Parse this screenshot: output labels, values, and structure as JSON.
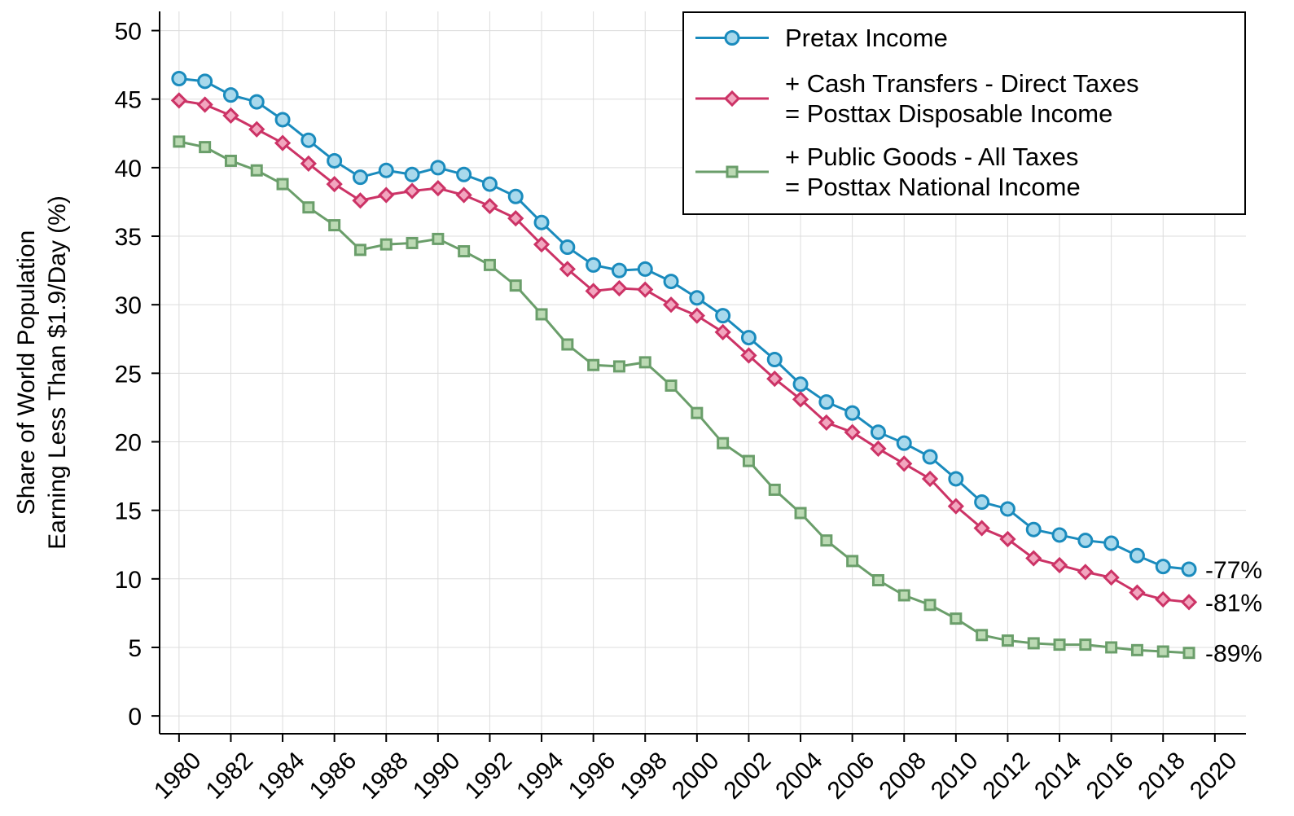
{
  "chart_data": {
    "type": "line",
    "y_label": [
      "Share of World Population",
      "Earning Less Than $1.9/Day (%)"
    ],
    "x": [
      1980,
      1981,
      1982,
      1983,
      1984,
      1985,
      1986,
      1987,
      1988,
      1989,
      1990,
      1991,
      1992,
      1993,
      1994,
      1995,
      1996,
      1997,
      1998,
      1999,
      2000,
      2001,
      2002,
      2003,
      2004,
      2005,
      2006,
      2007,
      2008,
      2009,
      2010,
      2011,
      2012,
      2013,
      2014,
      2015,
      2016,
      2017,
      2018,
      2019
    ],
    "series": [
      {
        "name": "Pretax Income",
        "color": "#1a8bbd",
        "marker_fill": "#a9d9ec",
        "marker": "circle",
        "values": [
          46.5,
          46.3,
          45.3,
          44.8,
          43.5,
          42.0,
          40.5,
          39.3,
          39.8,
          39.5,
          40.0,
          39.5,
          38.8,
          37.9,
          36.0,
          34.2,
          32.9,
          32.5,
          32.6,
          31.7,
          30.5,
          29.2,
          27.6,
          26.0,
          24.2,
          22.9,
          22.1,
          20.7,
          19.9,
          18.9,
          17.3,
          15.6,
          15.1,
          13.6,
          13.2,
          12.8,
          12.6,
          11.7,
          10.9,
          10.7
        ]
      },
      {
        "name": "+ Cash Transfers - Direct Taxes\n= Posttax Disposable Income",
        "color": "#cc3366",
        "marker_fill": "#f2a6bf",
        "marker": "diamond",
        "values": [
          44.9,
          44.6,
          43.8,
          42.8,
          41.8,
          40.3,
          38.8,
          37.6,
          38.0,
          38.3,
          38.5,
          38.0,
          37.2,
          36.3,
          34.4,
          32.6,
          31.0,
          31.2,
          31.1,
          30.0,
          29.2,
          28.0,
          26.3,
          24.6,
          23.1,
          21.4,
          20.7,
          19.5,
          18.4,
          17.3,
          15.3,
          13.7,
          12.9,
          11.5,
          11.0,
          10.5,
          10.1,
          9.0,
          8.5,
          8.3
        ]
      },
      {
        "name": "+ Public Goods - All Taxes\n= Posttax National Income",
        "color": "#6a9e6a",
        "marker_fill": "#bcdab4",
        "marker": "square",
        "values": [
          41.9,
          41.5,
          40.5,
          39.8,
          38.8,
          37.1,
          35.8,
          34.0,
          34.4,
          34.5,
          34.8,
          33.9,
          32.9,
          31.4,
          29.3,
          27.1,
          25.6,
          25.5,
          25.8,
          24.1,
          22.1,
          19.9,
          18.6,
          16.5,
          14.8,
          12.8,
          11.3,
          9.9,
          8.8,
          8.1,
          7.1,
          5.9,
          5.5,
          5.3,
          5.2,
          5.2,
          5.0,
          4.8,
          4.7,
          4.6
        ]
      }
    ],
    "annotations": [
      "-77%",
      "-81%",
      "-89%"
    ],
    "xlim": [
      1979.25,
      2021.2
    ],
    "xticks": [
      1980,
      1982,
      1984,
      1986,
      1988,
      1990,
      1992,
      1994,
      1996,
      1998,
      2000,
      2002,
      2004,
      2006,
      2008,
      2010,
      2012,
      2014,
      2016,
      2018,
      2020
    ],
    "ylim": [
      -1.3,
      51.4
    ],
    "yticks": [
      0,
      5,
      10,
      15,
      20,
      25,
      30,
      35,
      40,
      45,
      50
    ],
    "grid": true,
    "legend": "top-right"
  }
}
